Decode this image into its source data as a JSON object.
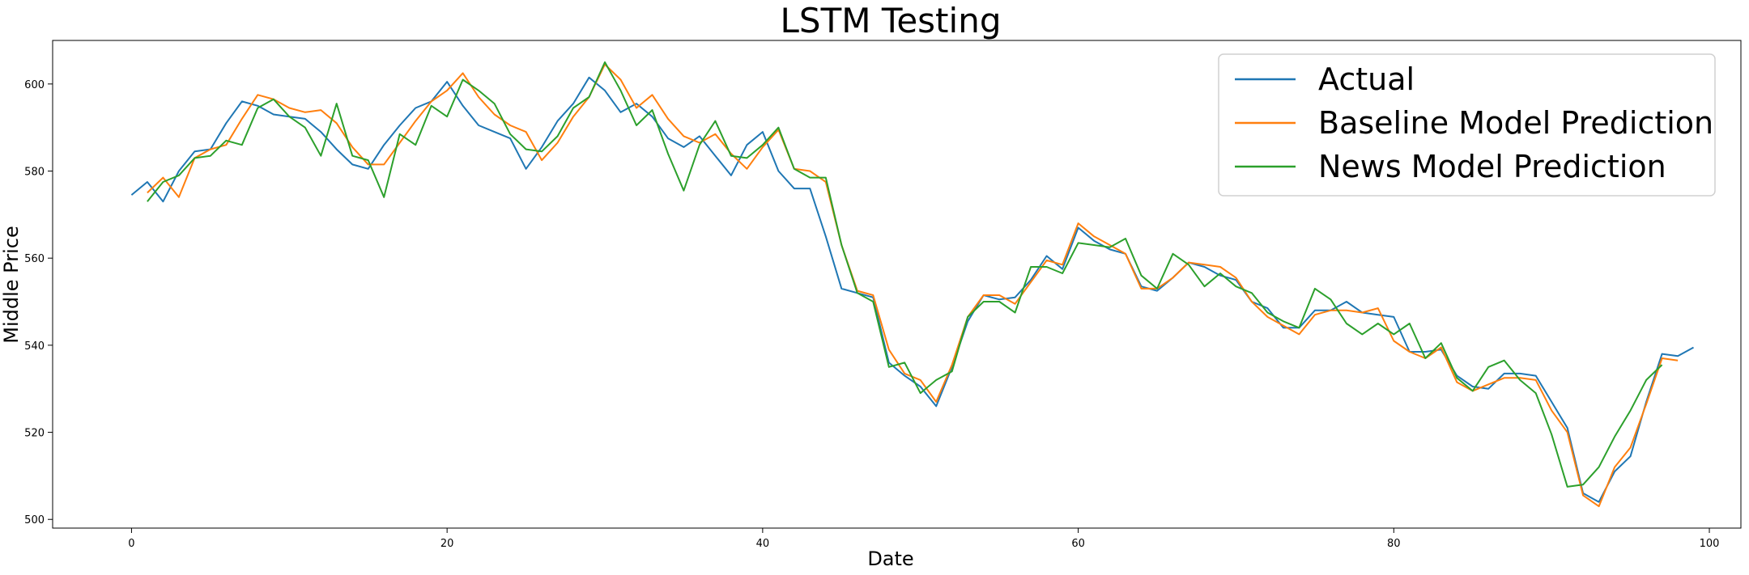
{
  "chart_data": {
    "type": "line",
    "title": "LSTM Testing",
    "xlabel": "Date",
    "ylabel": "Middle Price",
    "xlim": [
      -5,
      102
    ],
    "ylim": [
      498,
      610
    ],
    "xticks": [
      0,
      20,
      40,
      60,
      80,
      100
    ],
    "yticks": [
      500,
      520,
      540,
      560,
      580,
      600
    ],
    "grid": false,
    "legend_position": "top-right",
    "series": [
      {
        "name": "Actual",
        "color": "#1f77b4",
        "x_start": 0,
        "values": [
          574.5,
          577.5,
          573.0,
          580.0,
          584.5,
          585.0,
          591.0,
          596.0,
          595.0,
          593.0,
          592.5,
          592.0,
          589.0,
          585.0,
          581.5,
          580.5,
          586.0,
          590.5,
          594.5,
          596.0,
          600.5,
          595.0,
          590.5,
          589.0,
          587.5,
          580.5,
          585.5,
          591.5,
          595.5,
          601.5,
          598.5,
          593.5,
          595.5,
          592.5,
          587.5,
          585.5,
          588.0,
          583.5,
          579.0,
          586.0,
          589.0,
          580.0,
          576.0,
          576.0,
          565.0,
          553.0,
          552.0,
          551.0,
          536.0,
          533.0,
          530.5,
          526.0,
          535.0,
          545.5,
          551.5,
          550.5,
          551.0,
          555.0,
          560.5,
          557.5,
          567.0,
          564.0,
          562.0,
          561.0,
          553.5,
          552.5,
          555.5,
          559.0,
          558.0,
          556.0,
          555.0,
          550.0,
          548.5,
          544.0,
          544.0,
          548.0,
          548.0,
          550.0,
          547.5,
          547.0,
          546.5,
          538.5,
          538.5,
          539.0,
          533.0,
          530.5,
          530.0,
          533.5,
          533.5,
          533.0,
          527.0,
          521.0,
          506.0,
          504.0,
          511.0,
          514.5,
          527.0,
          538.0,
          537.5,
          539.5
        ]
      },
      {
        "name": "Baseline Model Prediction",
        "color": "#ff7f0e",
        "x_start": 1,
        "values": [
          575.0,
          578.5,
          574.0,
          583.0,
          585.0,
          586.0,
          592.0,
          597.5,
          596.5,
          594.5,
          593.5,
          594.0,
          591.0,
          585.5,
          581.5,
          581.5,
          586.5,
          591.5,
          596.0,
          598.5,
          602.5,
          597.0,
          593.0,
          590.5,
          589.0,
          582.5,
          586.5,
          592.5,
          597.0,
          604.5,
          601.0,
          594.5,
          597.5,
          592.0,
          588.0,
          586.5,
          588.5,
          584.0,
          580.5,
          585.5,
          589.5,
          580.5,
          580.0,
          577.5,
          563.0,
          552.5,
          551.5,
          539.0,
          533.5,
          532.0,
          527.0,
          535.5,
          546.5,
          551.5,
          551.5,
          549.5,
          554.5,
          559.5,
          558.5,
          568.0,
          565.0,
          563.0,
          561.0,
          553.0,
          553.0,
          555.5,
          559.0,
          558.5,
          558.0,
          555.5,
          550.0,
          546.5,
          544.5,
          542.5,
          547.0,
          548.0,
          548.0,
          547.5,
          548.5,
          541.0,
          538.5,
          537.0,
          539.5,
          531.5,
          529.5,
          531.0,
          532.5,
          532.5,
          532.0,
          525.0,
          520.0,
          505.5,
          503.0,
          512.0,
          516.5,
          526.5,
          537.0,
          536.5
        ]
      },
      {
        "name": "News Model Prediction",
        "color": "#2ca02c",
        "x_start": 1,
        "values": [
          573.0,
          577.5,
          579.0,
          583.0,
          583.5,
          587.0,
          586.0,
          594.5,
          596.5,
          592.5,
          590.0,
          583.5,
          595.5,
          583.5,
          582.5,
          574.0,
          588.5,
          586.0,
          595.0,
          592.5,
          601.0,
          598.5,
          595.5,
          588.5,
          585.0,
          584.5,
          588.0,
          594.5,
          597.0,
          605.0,
          598.5,
          590.5,
          594.0,
          584.0,
          575.5,
          586.0,
          591.5,
          583.5,
          583.0,
          586.0,
          590.0,
          580.5,
          578.5,
          578.5,
          563.0,
          552.0,
          550.0,
          535.0,
          536.0,
          529.0,
          532.0,
          534.0,
          546.5,
          550.0,
          550.0,
          547.5,
          558.0,
          558.0,
          556.5,
          563.5,
          563.0,
          562.5,
          564.5,
          556.0,
          553.0,
          561.0,
          558.5,
          553.5,
          556.5,
          553.5,
          552.0,
          547.5,
          545.5,
          544.0,
          553.0,
          550.5,
          545.0,
          542.5,
          545.0,
          542.5,
          545.0,
          537.0,
          540.5,
          532.5,
          529.5,
          535.0,
          536.5,
          532.0,
          529.0,
          519.5,
          507.5,
          508.0,
          512.0,
          519.0,
          525.0,
          532.0,
          535.5
        ]
      }
    ]
  }
}
